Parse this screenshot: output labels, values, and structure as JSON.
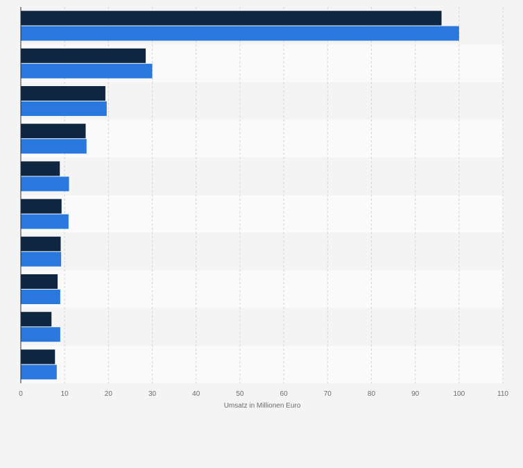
{
  "chart_data": {
    "type": "bar",
    "orientation": "horizontal",
    "title": "",
    "xlabel": "Umsatz in Millionen Euro",
    "ylabel": "",
    "xlim": [
      0,
      110
    ],
    "x_ticks": [
      0,
      10,
      20,
      30,
      40,
      50,
      60,
      70,
      80,
      90,
      100,
      110
    ],
    "grid": true,
    "legend": "none",
    "categories": [
      "",
      "",
      "",
      "",
      "",
      "",
      "",
      "",
      "",
      ""
    ],
    "series": [
      {
        "color": "#0f2640",
        "values": [
          96,
          28.5,
          19.3,
          14.8,
          8.9,
          9.3,
          9.1,
          8.4,
          7,
          7.8
        ]
      },
      {
        "color": "#2878de",
        "values": [
          100,
          30,
          19.6,
          15,
          11,
          10.9,
          9.2,
          9,
          9,
          8.2
        ]
      }
    ]
  }
}
